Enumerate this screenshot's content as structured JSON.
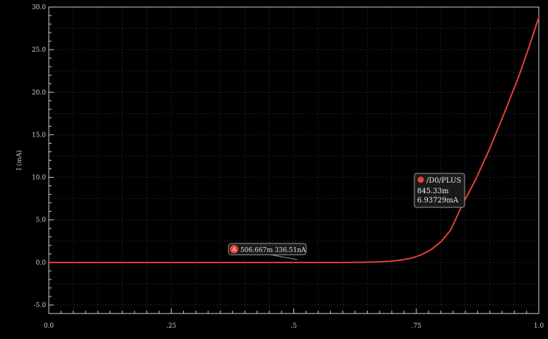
{
  "chart_data": {
    "type": "line",
    "title": "",
    "xlabel": "",
    "ylabel": "I (mA)",
    "xlim": [
      0.0,
      1.0
    ],
    "ylim": [
      -6.0,
      30.0
    ],
    "grid": true,
    "x_ticks": [
      {
        "value": 0.0,
        "label": "0.0"
      },
      {
        "value": 0.25,
        "label": ".25"
      },
      {
        "value": 0.5,
        "label": ".5"
      },
      {
        "value": 0.75,
        "label": ".75"
      },
      {
        "value": 1.0,
        "label": "1.0"
      }
    ],
    "y_ticks": [
      {
        "value": -5.0,
        "label": "-5.0"
      },
      {
        "value": 0.0,
        "label": "0.0"
      },
      {
        "value": 5.0,
        "label": "5.0"
      },
      {
        "value": 10.0,
        "label": "10.0"
      },
      {
        "value": 15.0,
        "label": "15.0"
      },
      {
        "value": 20.0,
        "label": "20.0"
      },
      {
        "value": 25.0,
        "label": "25.0"
      },
      {
        "value": 30.0,
        "label": "30.0"
      }
    ],
    "series": [
      {
        "name": "/D0/PLUS",
        "color": "#e8403a",
        "points": [
          [
            0.0,
            0.0
          ],
          [
            0.1,
            0.0
          ],
          [
            0.2,
            0.0
          ],
          [
            0.3,
            0.0
          ],
          [
            0.4,
            0.0
          ],
          [
            0.5,
            0.0
          ],
          [
            0.55,
            0.0
          ],
          [
            0.6,
            0.0
          ],
          [
            0.64,
            0.02
          ],
          [
            0.67,
            0.06
          ],
          [
            0.7,
            0.15
          ],
          [
            0.72,
            0.3
          ],
          [
            0.74,
            0.5
          ],
          [
            0.76,
            0.9
          ],
          [
            0.78,
            1.5
          ],
          [
            0.8,
            2.4
          ],
          [
            0.82,
            3.8
          ],
          [
            0.8453,
            6.93729
          ],
          [
            0.87,
            9.6
          ],
          [
            0.9,
            13.4
          ],
          [
            0.93,
            17.6
          ],
          [
            0.96,
            22.0
          ],
          [
            0.98,
            25.3
          ],
          [
            1.0,
            28.8
          ]
        ]
      }
    ],
    "markers": [
      {
        "id": "A",
        "badge": "A",
        "x": 0.506667,
        "y": 0.33651,
        "text": "506.667m 336.51nA"
      },
      {
        "id": "cursor",
        "x": 0.84533,
        "y": 6.93729,
        "series": "/D0/PLUS",
        "lines": [
          "845.33m",
          "6.93729mA"
        ]
      }
    ]
  },
  "colors": {
    "background": "#000000",
    "axis": "#d0d0d0",
    "grid": "#3a3a3a",
    "trace": "#e8403a",
    "label_bg": "#1a1a1a",
    "label_border": "#9a9a9a"
  }
}
